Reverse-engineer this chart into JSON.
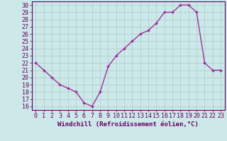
{
  "x": [
    0,
    1,
    2,
    3,
    4,
    5,
    6,
    7,
    8,
    9,
    10,
    11,
    12,
    13,
    14,
    15,
    16,
    17,
    18,
    19,
    20,
    21,
    22,
    23
  ],
  "y": [
    22,
    21,
    20,
    19,
    18.5,
    18,
    16.5,
    16,
    18,
    21.5,
    23,
    24,
    25,
    26,
    26.5,
    27.5,
    29,
    29,
    30,
    30,
    29,
    22,
    21,
    21
  ],
  "line_color": "#993399",
  "marker_color": "#993399",
  "bg_color": "#cce8e8",
  "grid_color": "#aacccc",
  "xlabel": "Windchill (Refroidissement éolien,°C)",
  "xlim": [
    -0.5,
    23.5
  ],
  "ylim": [
    15.5,
    30.5
  ],
  "yticks": [
    16,
    17,
    18,
    19,
    20,
    21,
    22,
    23,
    24,
    25,
    26,
    27,
    28,
    29,
    30
  ],
  "xticks": [
    0,
    1,
    2,
    3,
    4,
    5,
    6,
    7,
    8,
    9,
    10,
    11,
    12,
    13,
    14,
    15,
    16,
    17,
    18,
    19,
    20,
    21,
    22,
    23
  ],
  "tick_color": "#660066",
  "spine_color": "#660066",
  "font_size": 6.0,
  "xlabel_fontsize": 6.5,
  "grid_linewidth": 0.5,
  "line_width": 1.0,
  "marker_size": 2.0
}
